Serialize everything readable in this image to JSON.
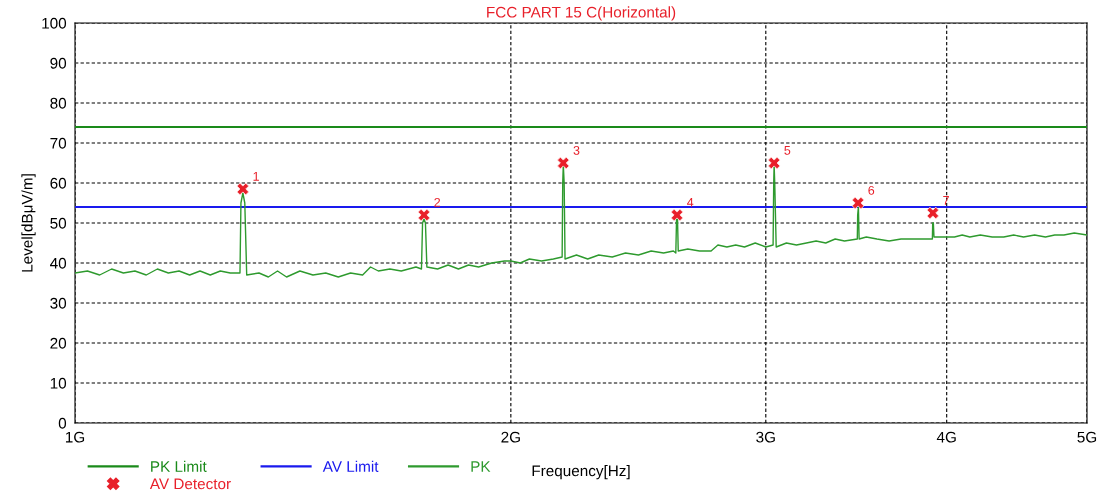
{
  "chart_data": {
    "type": "line",
    "title": "FCC PART 15 C(Horizontal)",
    "xlabel": "Frequency[Hz]",
    "ylabel": "Level[dBμV/m]",
    "log": "x",
    "xlim": [
      1,
      5
    ],
    "xticks": [
      {
        "value": 1,
        "label": "1G"
      },
      {
        "value": 2,
        "label": "2G"
      },
      {
        "value": 3,
        "label": "3G"
      },
      {
        "value": 4,
        "label": "4G"
      },
      {
        "value": 5,
        "label": "5G"
      }
    ],
    "ylim": [
      0,
      100
    ],
    "yticks": [
      0,
      10,
      20,
      30,
      40,
      50,
      60,
      70,
      80,
      90,
      100
    ],
    "grid": true,
    "legend": "bottom",
    "series": [
      {
        "name": "PK Limit",
        "color": "#1a8a1a",
        "x": [
          1,
          5
        ],
        "values": [
          74,
          74
        ]
      },
      {
        "name": "AV Limit",
        "color": "#1a1aee",
        "x": [
          1,
          5
        ],
        "values": [
          54,
          54
        ]
      },
      {
        "name": "PK",
        "color": "#2e9a2e",
        "x": [
          1.0,
          1.02,
          1.04,
          1.06,
          1.08,
          1.1,
          1.12,
          1.14,
          1.16,
          1.18,
          1.2,
          1.22,
          1.24,
          1.26,
          1.28,
          1.3,
          1.302,
          1.306,
          1.31,
          1.314,
          1.34,
          1.36,
          1.38,
          1.4,
          1.43,
          1.46,
          1.49,
          1.52,
          1.55,
          1.58,
          1.6,
          1.62,
          1.65,
          1.68,
          1.72,
          1.735,
          1.738,
          1.742,
          1.746,
          1.75,
          1.78,
          1.81,
          1.84,
          1.87,
          1.9,
          1.94,
          1.98,
          2.0,
          2.03,
          2.06,
          2.1,
          2.14,
          2.17,
          2.172,
          2.174,
          2.177,
          2.18,
          2.22,
          2.26,
          2.3,
          2.35,
          2.4,
          2.45,
          2.5,
          2.55,
          2.59,
          2.6,
          2.603,
          2.607,
          2.61,
          2.65,
          2.7,
          2.75,
          2.78,
          2.82,
          2.86,
          2.9,
          2.95,
          3.0,
          3.035,
          3.038,
          3.04,
          3.043,
          3.05,
          3.1,
          3.15,
          3.2,
          3.25,
          3.3,
          3.35,
          3.4,
          3.47,
          3.472,
          3.476,
          3.48,
          3.52,
          3.58,
          3.65,
          3.72,
          3.8,
          3.88,
          3.91,
          3.912,
          3.916,
          3.92,
          3.96,
          4.0,
          4.05,
          4.1,
          4.15,
          4.22,
          4.3,
          4.38,
          4.45,
          4.52,
          4.6,
          4.68,
          4.75,
          4.82,
          4.9,
          5.0
        ],
        "values": [
          37.5,
          38,
          37,
          38.5,
          37.5,
          38,
          37,
          38.5,
          37.5,
          38,
          37,
          38,
          37,
          38,
          37.5,
          37.5,
          55,
          57.5,
          55,
          37,
          37.5,
          36.5,
          38,
          36.5,
          38,
          37,
          37.5,
          36.5,
          37.5,
          37,
          39,
          38,
          38.5,
          38,
          39,
          38.5,
          50,
          51,
          50,
          39,
          38.5,
          39.5,
          38.5,
          39.5,
          39,
          40,
          40.5,
          40.5,
          40,
          41,
          40.5,
          41,
          41.5,
          60,
          64.5,
          60,
          41,
          42,
          41,
          42,
          41.5,
          42.5,
          42,
          43,
          42.5,
          43,
          42.5,
          51,
          51,
          43,
          43.5,
          43,
          43,
          44.5,
          44,
          44.5,
          44,
          45,
          44,
          44.5,
          60,
          64.5,
          60,
          44,
          45,
          44.5,
          45,
          45.5,
          45,
          46,
          45.5,
          46,
          52,
          54,
          46,
          46.5,
          46,
          45.5,
          46,
          46,
          46,
          46,
          50,
          50,
          46.5,
          46.5,
          46.5,
          46.5,
          47,
          46.5,
          47,
          46.5,
          46.5,
          47,
          46.5,
          47,
          46.5,
          47,
          47,
          47.5,
          47
        ]
      },
      {
        "name": "AV Detector",
        "type": "scatter",
        "marker": "cross",
        "color": "#e8202a",
        "x": [
          1.306,
          1.742,
          2.174,
          2.605,
          3.04,
          3.474,
          3.913
        ],
        "values": [
          58.5,
          52,
          65,
          52,
          65,
          55,
          52.5
        ]
      }
    ],
    "annotations": [
      {
        "text": "1",
        "x": 1.306,
        "y": 58.5
      },
      {
        "text": "2",
        "x": 1.742,
        "y": 52
      },
      {
        "text": "3",
        "x": 2.174,
        "y": 65
      },
      {
        "text": "4",
        "x": 2.605,
        "y": 52
      },
      {
        "text": "5",
        "x": 3.04,
        "y": 65
      },
      {
        "text": "6",
        "x": 3.474,
        "y": 55
      },
      {
        "text": "7",
        "x": 3.913,
        "y": 52.5
      }
    ]
  }
}
